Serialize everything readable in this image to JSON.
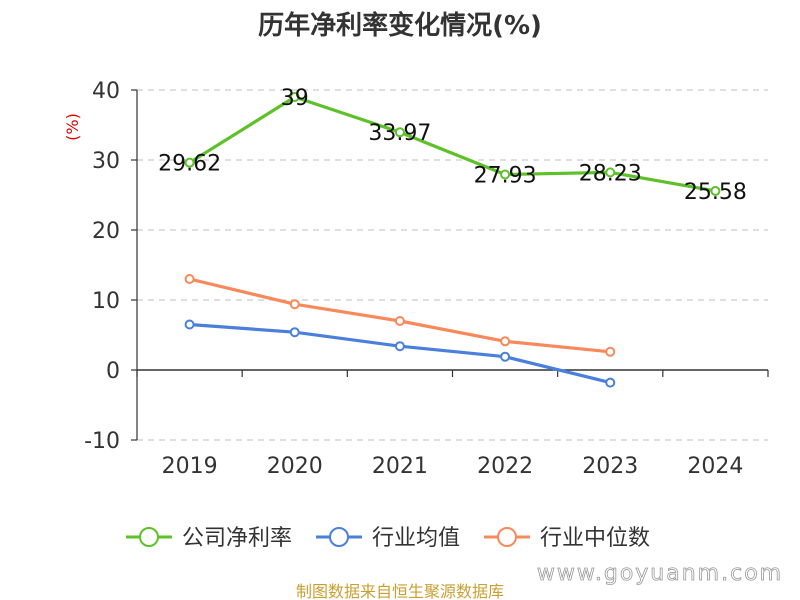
{
  "title": "历年净利率变化情况(%)",
  "ylabel": "(%)",
  "source": "制图数据来自恒生聚源数据库",
  "watermark": "www.goyuanm.com",
  "chart_data": {
    "type": "line",
    "title": "历年净利率变化情况(%)",
    "xlabel": "",
    "ylabel": "(%)",
    "ylim": [
      -10,
      40
    ],
    "yticks": [
      -10,
      0,
      10,
      20,
      30,
      40
    ],
    "categories": [
      "2019",
      "2020",
      "2021",
      "2022",
      "2023",
      "2024"
    ],
    "grid": true,
    "legend_position": "bottom",
    "series": [
      {
        "name": "公司净利率",
        "color": "#5ec12a",
        "values": [
          29.62,
          39,
          33.97,
          27.93,
          28.23,
          25.58
        ],
        "labels": [
          "29.62",
          "39",
          "33.97",
          "27.93",
          "28.23",
          "25.58"
        ]
      },
      {
        "name": "行业均值",
        "color": "#4a7fdc",
        "values": [
          6.5,
          5.4,
          3.4,
          1.9,
          -1.8,
          null
        ]
      },
      {
        "name": "行业中位数",
        "color": "#f7895a",
        "values": [
          13.0,
          9.4,
          7.0,
          4.1,
          2.6,
          null
        ]
      }
    ]
  }
}
